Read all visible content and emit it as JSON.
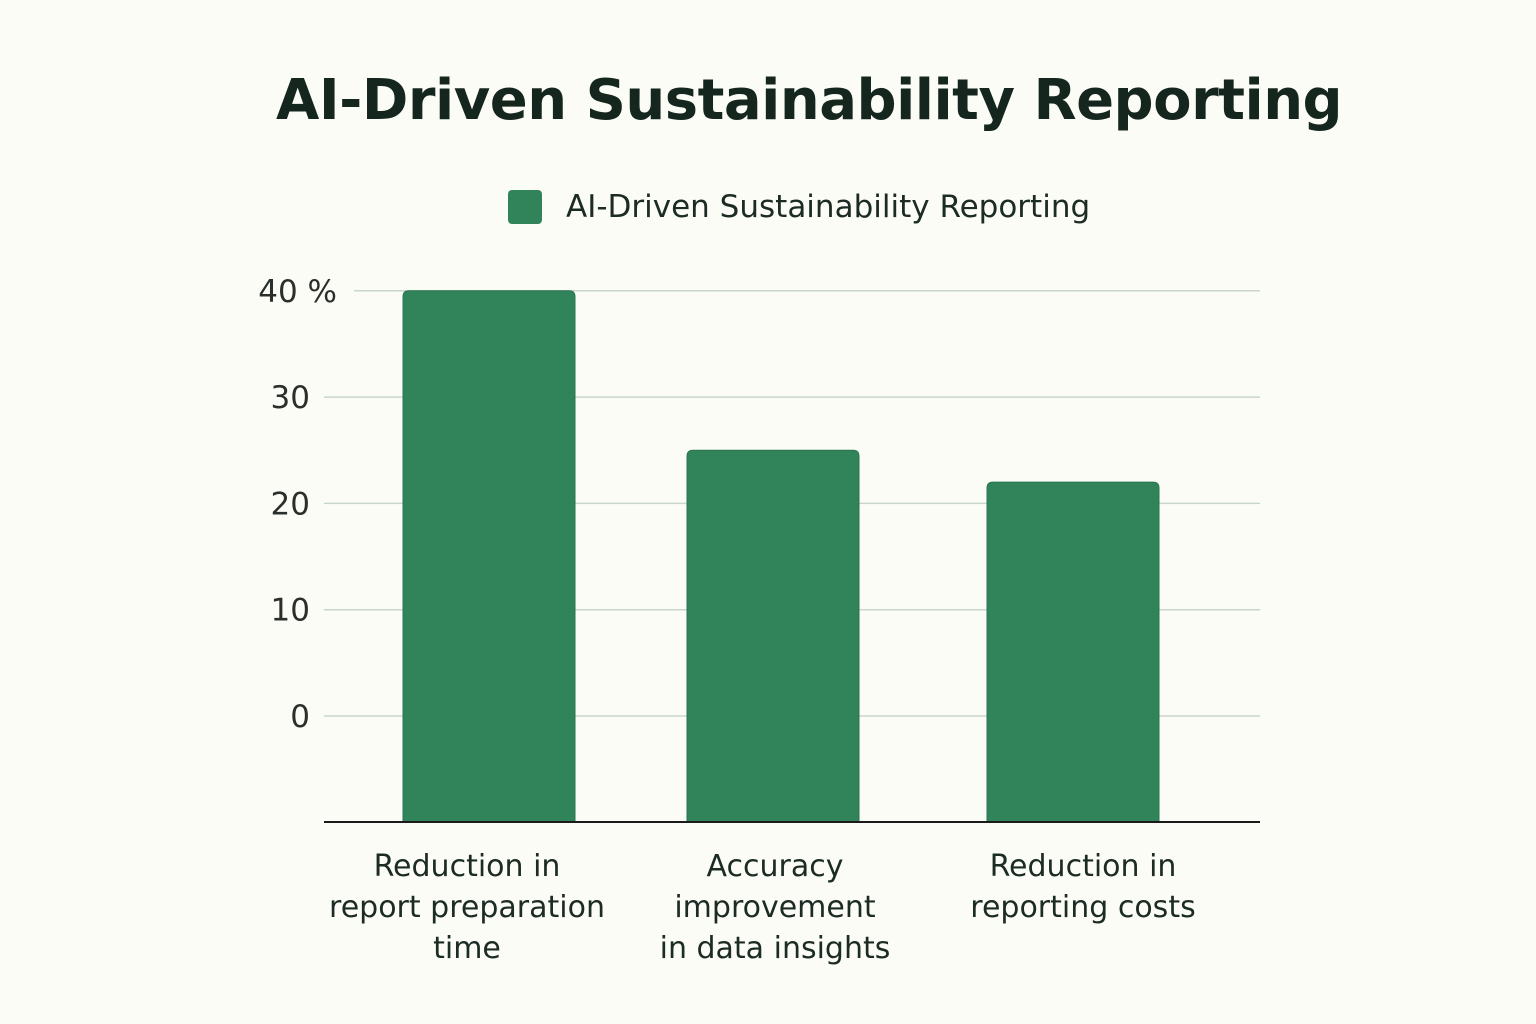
{
  "chart_data": {
    "type": "bar",
    "title": "AI-Driven Sustainability Reporting",
    "legend_position": "top-center",
    "grid": true,
    "xlabel": "",
    "ylabel": "",
    "categories": [
      [
        "Reduction in",
        "report preparation",
        "time"
      ],
      [
        "Accuracy",
        "improvement",
        "in data insights"
      ],
      [
        "Reduction in",
        "reporting costs"
      ]
    ],
    "series": [
      {
        "name": "AI-Driven Sustainability Reporting",
        "color": "#31845a",
        "values": [
          40,
          25,
          22
        ]
      }
    ],
    "y_ticks": [
      {
        "value": 40,
        "label": "40 %"
      },
      {
        "value": 30,
        "label": "30"
      },
      {
        "value": 20,
        "label": "20"
      },
      {
        "value": 10,
        "label": "10"
      },
      {
        "value": 0,
        "label": "0"
      }
    ],
    "colors": {
      "bar": "#31845a",
      "grid": "#c9d6cf",
      "axis": "#1a1a1a"
    }
  }
}
